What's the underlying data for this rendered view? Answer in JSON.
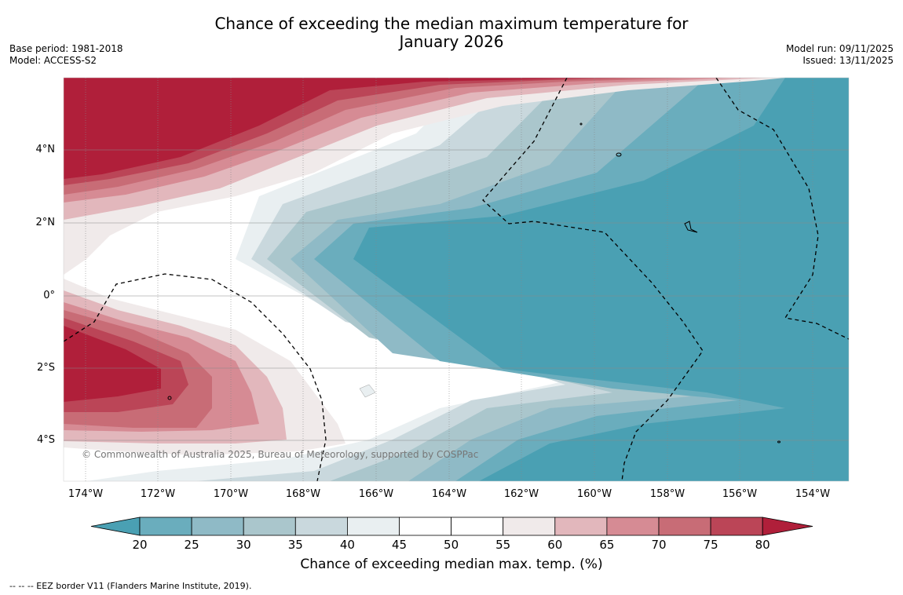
{
  "title_line1": "Chance of exceeding the median maximum temperature for",
  "title_line2": "January 2026",
  "base_period": "Base period: 1981-2018",
  "model": "Model: ACCESS-S2",
  "model_run": "Model run: 09/11/2025",
  "issued": "Issued: 13/11/2025",
  "lat_labels": [
    "4°N",
    "2°N",
    "0°",
    "2°S",
    "4°S"
  ],
  "lon_labels": [
    "174°W",
    "172°W",
    "170°W",
    "168°W",
    "166°W",
    "164°W",
    "162°W",
    "160°W",
    "158°W",
    "156°W",
    "154°W"
  ],
  "copyright": "© Commonwealth of Australia 2025, Bureau of Meteorology, supported by COSPPac",
  "colorbar": {
    "ticks": [
      "20",
      "25",
      "30",
      "35",
      "40",
      "45",
      "50",
      "55",
      "60",
      "65",
      "70",
      "75",
      "80"
    ],
    "colors": [
      "#4aa0b3",
      "#6aadbd",
      "#8fbac6",
      "#aac6cc",
      "#c9d8dd",
      "#e9eff1",
      "#ffffff",
      "#ffffff",
      "#f0eaea",
      "#e2b7bc",
      "#d68b94",
      "#c86c76",
      "#bb4557",
      "#b01f3a"
    ],
    "label": "Chance of exceeding median max. temp. (%)"
  },
  "footer": "--  --  -- EEZ border V11 (Flanders Marine Institute, 2019)."
}
